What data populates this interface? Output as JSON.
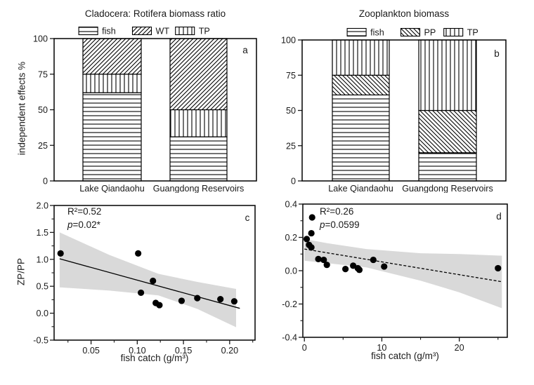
{
  "colors": {
    "band": "#d9d9d9",
    "ink": "#1a1a1a",
    "background": "#ffffff"
  },
  "chart_data": [
    {
      "type": "bar",
      "panel_label": "a",
      "title": "Cladocera: Rotifera biomass ratio",
      "ylabel": "independent effects %",
      "ylim": [
        0,
        100
      ],
      "ytick_vals": [
        0,
        25,
        50,
        75,
        100
      ],
      "ytick_labels": [
        "0",
        "25",
        "50",
        "75",
        "100"
      ],
      "categories": [
        "Lake Qiandaohu",
        "Guangdong Reservoirs"
      ],
      "legend": [
        {
          "label": "fish",
          "pattern": "hlines"
        },
        {
          "label": "WT",
          "pattern": "diag-up"
        },
        {
          "label": "TP",
          "pattern": "vlines"
        }
      ],
      "series": [
        {
          "name": "fish",
          "pattern": "hlines",
          "values": [
            62,
            31
          ]
        },
        {
          "name": "TP",
          "pattern": "vlines",
          "values": [
            13,
            19
          ]
        },
        {
          "name": "WT",
          "pattern": "diag-up",
          "values": [
            25,
            50
          ]
        }
      ]
    },
    {
      "type": "bar",
      "panel_label": "b",
      "title": "Zooplankton biomass",
      "ylabel": "",
      "ylim": [
        0,
        100
      ],
      "ytick_vals": [
        0,
        25,
        50,
        75,
        100
      ],
      "ytick_labels": [
        "0",
        "25",
        "50",
        "75",
        "100"
      ],
      "categories": [
        "Lake Qiandaohu",
        "Guangdong Reservoirs"
      ],
      "legend": [
        {
          "label": "fish",
          "pattern": "hlines"
        },
        {
          "label": "PP",
          "pattern": "diag-down"
        },
        {
          "label": "TP",
          "pattern": "vlines"
        }
      ],
      "series": [
        {
          "name": "fish",
          "pattern": "hlines",
          "values": [
            61,
            20
          ]
        },
        {
          "name": "PP",
          "pattern": "diag-down",
          "values": [
            14,
            30
          ]
        },
        {
          "name": "TP",
          "pattern": "vlines",
          "values": [
            25,
            50
          ]
        }
      ]
    },
    {
      "type": "scatter",
      "panel_label": "c",
      "title": "",
      "xlabel": "fish catch (g/m³)",
      "ylabel": "ZP/PP",
      "xlim": [
        0.01,
        0.2275
      ],
      "ylim": [
        -0.5,
        2.0
      ],
      "xtick_vals": [
        0.05,
        0.1,
        0.15,
        0.2
      ],
      "xtick_labels": [
        "0.05",
        "0.10",
        "0.15",
        "0.20"
      ],
      "xminor_vals": [
        0.025,
        0.075,
        0.125,
        0.175,
        0.225
      ],
      "ytick_vals": [
        -0.5,
        0.0,
        0.5,
        1.0,
        1.5,
        2.0
      ],
      "ytick_labels": [
        "-0.5",
        "0.0",
        "0.5",
        "1.0",
        "1.5",
        "2.0"
      ],
      "yminor_vals": [
        -0.25,
        0.25,
        0.75,
        1.25,
        1.75
      ],
      "points": [
        [
          0.017,
          1.11
        ],
        [
          0.101,
          1.11
        ],
        [
          0.104,
          0.38
        ],
        [
          0.117,
          0.6
        ],
        [
          0.12,
          0.19
        ],
        [
          0.124,
          0.15
        ],
        [
          0.148,
          0.23
        ],
        [
          0.165,
          0.28
        ],
        [
          0.19,
          0.26
        ],
        [
          0.205,
          0.22
        ]
      ],
      "regression": {
        "style": "solid",
        "x1": 0.016,
        "y1": 1.01,
        "x2": 0.211,
        "y2": 0.09
      },
      "band": {
        "x": [
          0.016,
          0.07,
          0.123,
          0.165,
          0.207
        ],
        "upper": [
          1.5,
          1.08,
          0.73,
          0.58,
          0.45
        ],
        "lower": [
          0.48,
          0.42,
          0.33,
          0.08,
          -0.26
        ]
      },
      "annotation": {
        "r2": "R²=0.52",
        "p_symbol": "p",
        "p_rest": "=0.02*"
      }
    },
    {
      "type": "scatter",
      "panel_label": "d",
      "title": "",
      "xlabel": "fish catch (g/m³)",
      "ylabel": "",
      "xlim": [
        -0.2,
        26.2
      ],
      "ylim": [
        -0.4,
        0.4
      ],
      "xtick_vals": [
        0,
        10,
        20
      ],
      "xtick_labels": [
        "0",
        "10",
        "20"
      ],
      "xminor_vals": [
        5,
        15,
        25
      ],
      "ytick_vals": [
        -0.4,
        -0.2,
        0.0,
        0.2,
        0.4
      ],
      "ytick_labels": [
        "-0.4",
        "-0.2",
        "0.0",
        "0.2",
        "0.4"
      ],
      "yminor_vals": [
        -0.3,
        -0.1,
        0.1,
        0.3
      ],
      "points": [
        [
          0.3,
          0.19
        ],
        [
          0.6,
          0.155
        ],
        [
          1.0,
          0.32
        ],
        [
          0.9,
          0.225
        ],
        [
          0.9,
          0.14
        ],
        [
          1.8,
          0.07
        ],
        [
          2.5,
          0.065
        ],
        [
          2.9,
          0.035
        ],
        [
          5.3,
          0.01
        ],
        [
          6.3,
          0.03
        ],
        [
          6.9,
          0.015
        ],
        [
          7.1,
          0.005
        ],
        [
          8.9,
          0.065
        ],
        [
          10.3,
          0.025
        ],
        [
          25.0,
          0.015
        ]
      ],
      "regression": {
        "style": "dashed",
        "x1": 0.0,
        "y1": 0.13,
        "x2": 25.6,
        "y2": -0.067
      },
      "band": {
        "x": [
          0,
          3,
          8,
          15,
          20,
          25.5
        ],
        "upper": [
          0.19,
          0.165,
          0.13,
          0.105,
          0.1,
          0.09
        ],
        "lower": [
          0.06,
          0.045,
          0.02,
          -0.06,
          -0.13,
          -0.225
        ]
      },
      "annotation": {
        "r2": "R²=0.26",
        "p_symbol": "p",
        "p_rest": "=0.0599"
      }
    }
  ]
}
